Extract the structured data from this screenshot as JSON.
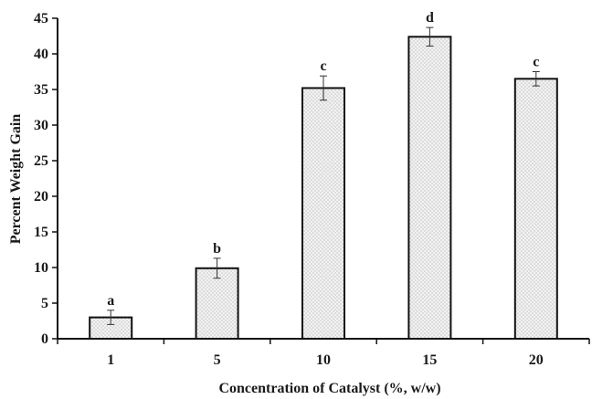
{
  "chart_data": {
    "type": "bar",
    "categories": [
      "1",
      "5",
      "10",
      "15",
      "20"
    ],
    "values": [
      3.0,
      9.9,
      35.2,
      42.4,
      36.5
    ],
    "errors": [
      1.0,
      1.4,
      1.7,
      1.3,
      1.0
    ],
    "significance_labels": [
      "a",
      "b",
      "c",
      "d",
      "c"
    ],
    "title": "",
    "xlabel": "Concentration of Catalyst (%, w/w)",
    "ylabel": "Percent  Weight  Gain",
    "ylim": [
      0,
      45
    ],
    "yticks": [
      "0",
      "5",
      "10",
      "15",
      "20",
      "25",
      "30",
      "35",
      "40",
      "45"
    ],
    "grid": false,
    "legend": "none",
    "bar_fill_pattern": "dotted",
    "colors": {
      "bar_fill": "#f2f2f2",
      "bar_dots": "#8a8a8a",
      "bar_edge": "#111111",
      "axis": "#111111",
      "error_bar": "#333333"
    }
  }
}
